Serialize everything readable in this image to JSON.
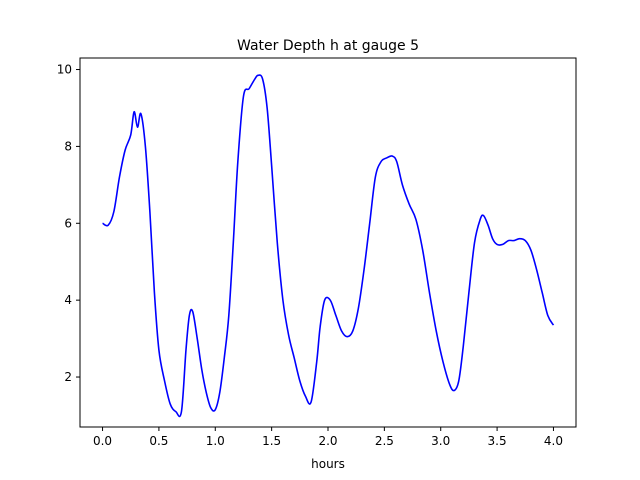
{
  "chart_data": {
    "type": "line",
    "title": "Water Depth h at gauge 5",
    "xlabel": "hours",
    "ylabel": "",
    "xlim": [
      -0.2,
      4.2
    ],
    "ylim": [
      0.7,
      10.3
    ],
    "xticks": [
      0.0,
      0.5,
      1.0,
      1.5,
      2.0,
      2.5,
      3.0,
      3.5,
      4.0
    ],
    "xtick_labels": [
      "0.0",
      "0.5",
      "1.0",
      "1.5",
      "2.0",
      "2.5",
      "3.0",
      "3.5",
      "4.0"
    ],
    "yticks": [
      2,
      4,
      6,
      8,
      10
    ],
    "ytick_labels": [
      "2",
      "4",
      "6",
      "8",
      "10"
    ],
    "grid": false,
    "series": [
      {
        "color": "#0000ff",
        "x": [
          0.0,
          0.05,
          0.1,
          0.15,
          0.2,
          0.25,
          0.28,
          0.31,
          0.34,
          0.38,
          0.42,
          0.46,
          0.5,
          0.55,
          0.6,
          0.65,
          0.7,
          0.74,
          0.77,
          0.8,
          0.84,
          0.88,
          0.92,
          0.96,
          1.0,
          1.04,
          1.08,
          1.12,
          1.16,
          1.2,
          1.25,
          1.3,
          1.35,
          1.38,
          1.42,
          1.46,
          1.5,
          1.55,
          1.6,
          1.65,
          1.7,
          1.75,
          1.8,
          1.85,
          1.9,
          1.93,
          1.97,
          2.02,
          2.07,
          2.12,
          2.17,
          2.22,
          2.27,
          2.32,
          2.37,
          2.42,
          2.47,
          2.52,
          2.57,
          2.61,
          2.66,
          2.72,
          2.78,
          2.84,
          2.9,
          2.96,
          3.02,
          3.08,
          3.12,
          3.16,
          3.2,
          3.25,
          3.3,
          3.35,
          3.38,
          3.42,
          3.46,
          3.5,
          3.55,
          3.6,
          3.65,
          3.7,
          3.75,
          3.8,
          3.85,
          3.9,
          3.95,
          4.0
        ],
        "values": [
          6.0,
          5.95,
          6.3,
          7.2,
          7.9,
          8.3,
          8.9,
          8.5,
          8.85,
          8.0,
          6.3,
          4.2,
          2.7,
          1.9,
          1.3,
          1.1,
          1.1,
          2.7,
          3.6,
          3.7,
          3.0,
          2.2,
          1.6,
          1.2,
          1.15,
          1.6,
          2.5,
          3.6,
          5.5,
          7.6,
          9.3,
          9.5,
          9.75,
          9.85,
          9.75,
          9.0,
          7.5,
          5.5,
          4.0,
          3.1,
          2.5,
          1.9,
          1.5,
          1.35,
          2.4,
          3.3,
          4.0,
          4.0,
          3.6,
          3.2,
          3.05,
          3.2,
          3.8,
          4.8,
          6.0,
          7.2,
          7.6,
          7.7,
          7.75,
          7.6,
          7.0,
          6.5,
          6.1,
          5.3,
          4.2,
          3.2,
          2.4,
          1.8,
          1.65,
          1.9,
          2.8,
          4.2,
          5.5,
          6.1,
          6.2,
          5.95,
          5.6,
          5.45,
          5.45,
          5.55,
          5.55,
          5.6,
          5.55,
          5.3,
          4.8,
          4.2,
          3.6,
          3.35
        ]
      }
    ]
  }
}
